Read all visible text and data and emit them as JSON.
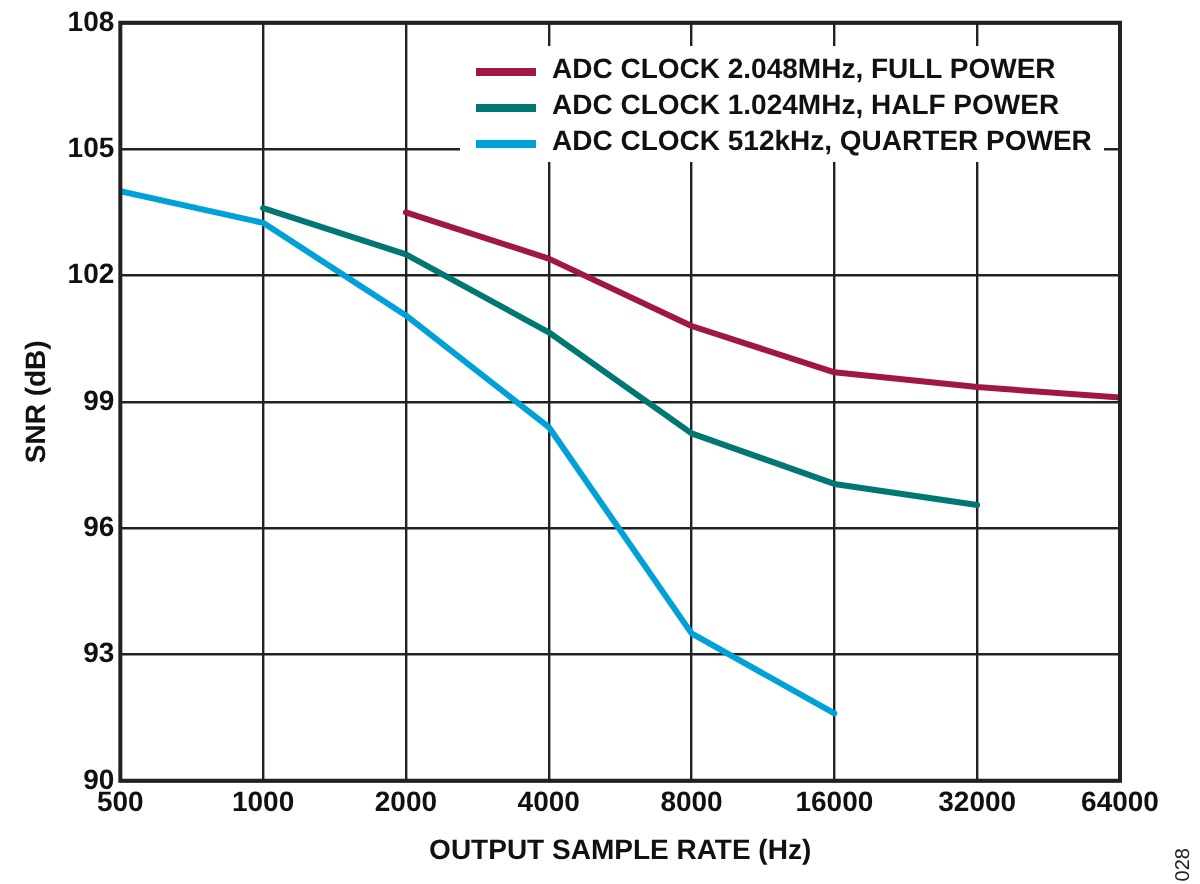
{
  "chart_data": {
    "type": "line",
    "xlabel": "OUTPUT SAMPLE RATE (Hz)",
    "ylabel": "SNR (dB)",
    "x": [
      500,
      1000,
      2000,
      4000,
      8000,
      16000,
      32000,
      64000
    ],
    "series": [
      {
        "name": "ADC CLOCK 2.048MHz, FULL POWER",
        "color": "#a0183f",
        "values": [
          null,
          null,
          103.5,
          102.4,
          100.8,
          99.7,
          99.35,
          99.1
        ]
      },
      {
        "name": "ADC CLOCK 1.024MHz, HALF POWER",
        "color": "#007770",
        "values": [
          null,
          103.6,
          102.5,
          100.65,
          98.25,
          97.05,
          96.55,
          null
        ]
      },
      {
        "name": "ADC CLOCK 512kHz, QUARTER POWER",
        "color": "#00a0d8",
        "values": [
          104.0,
          103.25,
          101.05,
          98.4,
          93.5,
          91.6,
          null,
          null
        ]
      }
    ],
    "log": "x",
    "xlim": [
      500,
      64000
    ],
    "xticks": [
      500,
      1000,
      2000,
      4000,
      8000,
      16000,
      32000,
      64000
    ],
    "ylim": [
      90,
      108
    ],
    "yticks": [
      90,
      93,
      96,
      99,
      102,
      105,
      108
    ],
    "grid": true,
    "legend": "top right",
    "marker": "none",
    "line_style": "solid",
    "annotations": [
      "028"
    ]
  }
}
